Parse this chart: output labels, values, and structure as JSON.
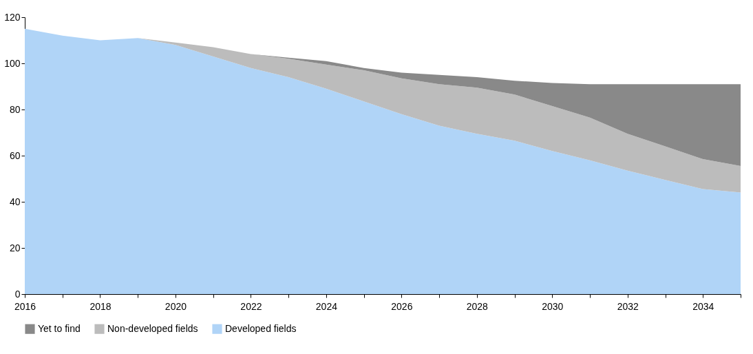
{
  "chart_data": {
    "type": "area",
    "stacked": true,
    "x": [
      2016,
      2017,
      2018,
      2019,
      2020,
      2021,
      2022,
      2023,
      2024,
      2025,
      2026,
      2027,
      2028,
      2029,
      2030,
      2031,
      2032,
      2033,
      2034,
      2035
    ],
    "series": [
      {
        "name": "Developed fields",
        "color": "#b0d4f7",
        "values": [
          115,
          112,
          110,
          111,
          108,
          103,
          98,
          94,
          89,
          83.5,
          78,
          73,
          69.5,
          66.5,
          62,
          58,
          53.5,
          49.5,
          45.5,
          44
        ]
      },
      {
        "name": "Non-developed fields",
        "color": "#bcbcbc",
        "values": [
          0,
          0,
          0,
          0,
          1,
          4,
          6,
          8,
          10.5,
          13.5,
          15.5,
          18,
          20,
          20,
          19.5,
          18.5,
          16,
          14.5,
          13,
          11.5
        ]
      },
      {
        "name": "Yet to find",
        "color": "#898989",
        "values": [
          0,
          0,
          0,
          0,
          0,
          0,
          0,
          0.5,
          1.5,
          1,
          2.5,
          4,
          4.5,
          6,
          10,
          14.5,
          21.5,
          27,
          32.5,
          35.5
        ]
      }
    ],
    "xlim": [
      2016,
      2035
    ],
    "xticks": [
      2016,
      {
        "value": 2017,
        "label": null
      },
      2018,
      {
        "value": 2019,
        "label": null
      },
      2020,
      {
        "value": 2021,
        "label": null
      },
      2022,
      {
        "value": 2023,
        "label": null
      },
      2024,
      {
        "value": 2025,
        "label": null
      },
      2026,
      {
        "value": 2027,
        "label": null
      },
      2028,
      {
        "value": 2029,
        "label": null
      },
      2030,
      {
        "value": 2031,
        "label": null
      },
      2032,
      {
        "value": 2033,
        "label": null
      },
      2034,
      {
        "value": 2035,
        "label": null
      }
    ],
    "ylim": [
      0,
      120
    ],
    "yticks": [
      0,
      20,
      40,
      60,
      80,
      100,
      120
    ],
    "grid": false,
    "legend": "bottom left"
  }
}
